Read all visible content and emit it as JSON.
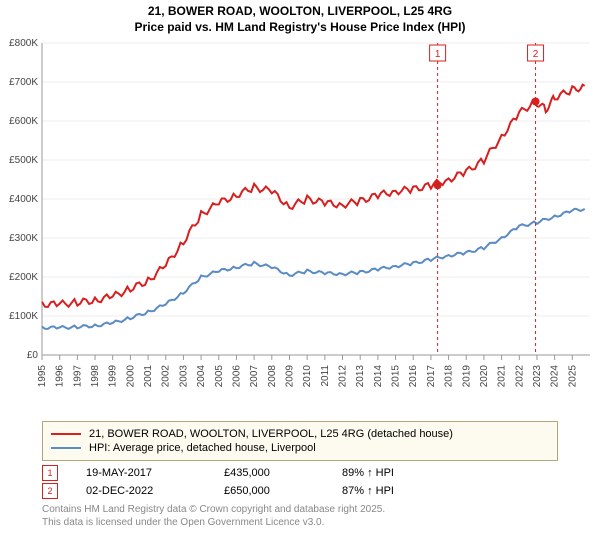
{
  "title_line1": "21, BOWER ROAD, WOOLTON, LIVERPOOL, L25 4RG",
  "title_line2": "Price paid vs. HM Land Registry's House Price Index (HPI)",
  "chart": {
    "type": "line",
    "background_color": "#ffffff",
    "grid_color": "#eeeeee",
    "axis_color": "#999999",
    "x_years": [
      1995,
      1996,
      1997,
      1998,
      1999,
      2000,
      2001,
      2002,
      2003,
      2004,
      2005,
      2006,
      2007,
      2008,
      2009,
      2010,
      2011,
      2012,
      2013,
      2014,
      2015,
      2016,
      2017,
      2018,
      2019,
      2020,
      2021,
      2022,
      2023,
      2024,
      2025
    ],
    "x_range": [
      1995,
      2026
    ],
    "ylim": [
      0,
      800000
    ],
    "ytick_step": 100000,
    "ytick_labels": [
      "£0",
      "£100K",
      "£200K",
      "£300K",
      "£400K",
      "£500K",
      "£600K",
      "£700K",
      "£800K"
    ],
    "series": [
      {
        "name": "price_paid",
        "color": "#d6201f",
        "width": 2,
        "points": [
          [
            1995,
            130000
          ],
          [
            1996,
            130000
          ],
          [
            1997,
            135000
          ],
          [
            1998,
            140000
          ],
          [
            1999,
            150000
          ],
          [
            2000,
            170000
          ],
          [
            2001,
            190000
          ],
          [
            2002,
            230000
          ],
          [
            2003,
            290000
          ],
          [
            2004,
            360000
          ],
          [
            2005,
            390000
          ],
          [
            2006,
            410000
          ],
          [
            2007,
            430000
          ],
          [
            2008,
            420000
          ],
          [
            2009,
            380000
          ],
          [
            2010,
            400000
          ],
          [
            2011,
            390000
          ],
          [
            2012,
            385000
          ],
          [
            2013,
            395000
          ],
          [
            2014,
            410000
          ],
          [
            2015,
            420000
          ],
          [
            2016,
            425000
          ],
          [
            2017,
            435000
          ],
          [
            2018,
            450000
          ],
          [
            2019,
            470000
          ],
          [
            2020,
            500000
          ],
          [
            2021,
            560000
          ],
          [
            2022,
            620000
          ],
          [
            2022.9,
            650000
          ],
          [
            2023.5,
            630000
          ],
          [
            2024,
            660000
          ],
          [
            2025,
            680000
          ],
          [
            2025.7,
            690000
          ]
        ]
      },
      {
        "name": "hpi",
        "color": "#5b8bc4",
        "width": 2,
        "points": [
          [
            1995,
            70000
          ],
          [
            1996,
            70000
          ],
          [
            1997,
            72000
          ],
          [
            1998,
            75000
          ],
          [
            1999,
            82000
          ],
          [
            2000,
            95000
          ],
          [
            2001,
            110000
          ],
          [
            2002,
            130000
          ],
          [
            2003,
            160000
          ],
          [
            2004,
            200000
          ],
          [
            2005,
            215000
          ],
          [
            2006,
            225000
          ],
          [
            2007,
            235000
          ],
          [
            2008,
            225000
          ],
          [
            2009,
            205000
          ],
          [
            2010,
            215000
          ],
          [
            2011,
            210000
          ],
          [
            2012,
            208000
          ],
          [
            2013,
            212000
          ],
          [
            2014,
            220000
          ],
          [
            2015,
            228000
          ],
          [
            2016,
            235000
          ],
          [
            2017,
            245000
          ],
          [
            2018,
            255000
          ],
          [
            2019,
            262000
          ],
          [
            2020,
            275000
          ],
          [
            2021,
            300000
          ],
          [
            2022,
            330000
          ],
          [
            2023,
            340000
          ],
          [
            2024,
            355000
          ],
          [
            2025,
            370000
          ],
          [
            2025.7,
            375000
          ]
        ]
      }
    ],
    "sale_markers": [
      {
        "idx": "1",
        "x": 2017.38,
        "y": 435000,
        "color": "#d6201f"
      },
      {
        "idx": "2",
        "x": 2022.92,
        "y": 650000,
        "color": "#d6201f"
      }
    ]
  },
  "legend": {
    "border_color": "#b3a77a",
    "bg_color": "#fdfbef",
    "items": [
      {
        "color": "#d6201f",
        "label": "21, BOWER ROAD, WOOLTON, LIVERPOOL, L25 4RG (detached house)"
      },
      {
        "color": "#5b8bc4",
        "label": "HPI: Average price, detached house, Liverpool"
      }
    ]
  },
  "sales": [
    {
      "idx": "1",
      "color": "#d6201f",
      "date": "19-MAY-2017",
      "price": "£435,000",
      "delta": "89% ↑ HPI"
    },
    {
      "idx": "2",
      "color": "#d6201f",
      "date": "02-DEC-2022",
      "price": "£650,000",
      "delta": "87% ↑ HPI"
    }
  ],
  "footer": {
    "line1": "Contains HM Land Registry data © Crown copyright and database right 2025.",
    "line2": "This data is licensed under the Open Government Licence v3.0."
  }
}
